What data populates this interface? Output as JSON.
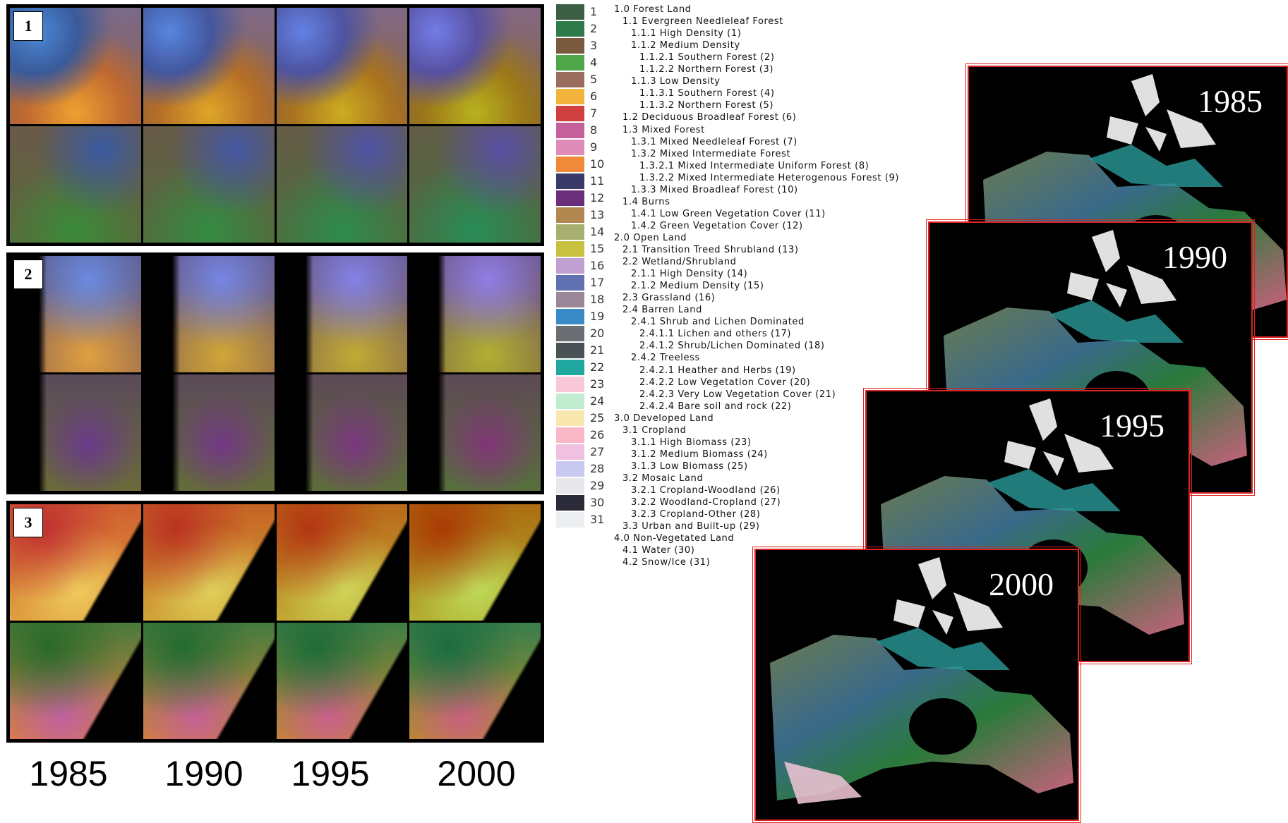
{
  "panels": [
    {
      "label": "1"
    },
    {
      "label": "2"
    },
    {
      "label": "3"
    }
  ],
  "years": [
    "1985",
    "1990",
    "1995",
    "2000"
  ],
  "legend": [
    {
      "number": "1",
      "color": "#3b5e45"
    },
    {
      "number": "2",
      "color": "#2e7a4a"
    },
    {
      "number": "3",
      "color": "#7a5a3e"
    },
    {
      "number": "4",
      "color": "#4fa64a"
    },
    {
      "number": "5",
      "color": "#9a6e5e"
    },
    {
      "number": "6",
      "color": "#f2b43c"
    },
    {
      "number": "7",
      "color": "#d04040"
    },
    {
      "number": "8",
      "color": "#c4609a"
    },
    {
      "number": "9",
      "color": "#e08cb8"
    },
    {
      "number": "10",
      "color": "#f08a3a"
    },
    {
      "number": "11",
      "color": "#3a3a6a"
    },
    {
      "number": "12",
      "color": "#6a2e7a"
    },
    {
      "number": "13",
      "color": "#b08850"
    },
    {
      "number": "14",
      "color": "#a8b070"
    },
    {
      "number": "15",
      "color": "#c8c040"
    },
    {
      "number": "16",
      "color": "#c0a0d0"
    },
    {
      "number": "17",
      "color": "#6070b0"
    },
    {
      "number": "18",
      "color": "#9a8898"
    },
    {
      "number": "19",
      "color": "#3a8ac8"
    },
    {
      "number": "20",
      "color": "#6a6e72"
    },
    {
      "number": "21",
      "color": "#4a5256"
    },
    {
      "number": "22",
      "color": "#20a8a0"
    },
    {
      "number": "23",
      "color": "#f8c8d8"
    },
    {
      "number": "24",
      "color": "#c0ecd0"
    },
    {
      "number": "25",
      "color": "#f8e8b0"
    },
    {
      "number": "26",
      "color": "#f8b8c8"
    },
    {
      "number": "27",
      "color": "#f0c0e0"
    },
    {
      "number": "28",
      "color": "#c8c8f0"
    },
    {
      "number": "29",
      "color": "#e8e8ec"
    },
    {
      "number": "30",
      "color": "#2a2a38"
    },
    {
      "number": "31",
      "color": "#eceef2"
    }
  ],
  "classes": [
    "1.0 Forest Land",
    "1.1 Evergreen Needleleaf Forest",
    "1.1.1 High Density (1)",
    "1.1.2 Medium Density",
    "1.1.2.1 Southern Forest (2)",
    "1.1.2.2 Northern Forest (3)",
    "1.1.3 Low Density",
    "1.1.3.1 Southern Forest (4)",
    "1.1.3.2 Northern Forest (5)",
    "1.2 Deciduous Broadleaf Forest (6)",
    "1.3 Mixed Forest",
    "1.3.1 Mixed Needleleaf Forest (7)",
    "1.3.2 Mixed Intermediate Forest",
    "1.3.2.1 Mixed Intermediate Uniform Forest (8)",
    "1.3.2.2 Mixed Intermediate Heterogenous Forest (9)",
    "1.3.3 Mixed Broadleaf Forest (10)",
    "1.4 Burns",
    "1.4.1 Low Green Vegetation Cover (11)",
    "1.4.2 Green Vegetation Cover (12)",
    "2.0 Open Land",
    "2.1 Transition Treed Shrubland (13)",
    "2.2 Wetland/Shrubland",
    "2.1.1 High Density (14)",
    "2.1.2 Medium Density (15)",
    "2.3 Grassland (16)",
    "2.4 Barren Land",
    "2.4.1 Shrub and Lichen Dominated",
    "2.4.1.1 Lichen and others (17)",
    "2.4.1.2 Shrub/Lichen Dominated (18)",
    "2.4.2 Treeless",
    "2.4.2.1 Heather and Herbs (19)",
    "2.4.2.2 Low Vegetation Cover (20)",
    "2.4.2.3 Very Low Vegetation Cover (21)",
    "2.4.2.4 Bare soil and rock (22)",
    "3.0 Developed Land",
    "3.1 Cropland",
    "3.1.1 High Biomass (23)",
    "3.1.2 Medium Biomass (24)",
    "3.1.3 Low Biomass (25)",
    "3.2 Mosaic Land",
    "3.2.1 Cropland-Woodland (26)",
    "3.2.2 Woodland-Cropland (27)",
    "3.2.3 Cropland-Other (28)",
    "3.3 Urban and Built-up (29)",
    "4.0 Non-Vegetated Land",
    "4.1 Water (30)",
    "4.2 Snow/Ice (31)"
  ],
  "maps": [
    {
      "year": "1985"
    },
    {
      "year": "1990"
    },
    {
      "year": "1995"
    },
    {
      "year": "2000"
    }
  ]
}
